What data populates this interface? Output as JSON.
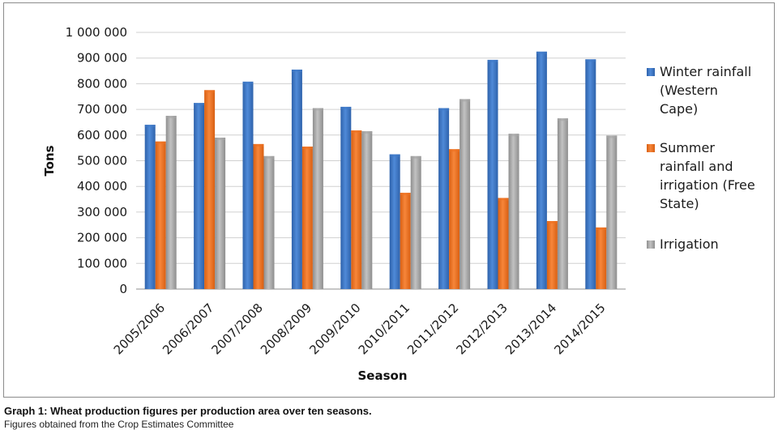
{
  "colors": {
    "series": [
      "#3f79c8",
      "#ee7222",
      "#a5a5a5"
    ]
  },
  "chart_data": {
    "type": "bar",
    "title": "",
    "xlabel": "Season",
    "ylabel": "Tons",
    "ylim": [
      0,
      1000000
    ],
    "yticks": [
      "0",
      "100 000",
      "200 000",
      "300 000",
      "400 000",
      "500 000",
      "600 000",
      "700 000",
      "800 000",
      "900 000",
      "1 000 000"
    ],
    "categories": [
      "2005/2006",
      "2006/2007",
      "2007/2008",
      "2008/2009",
      "2009/2010",
      "2010/2011",
      "2011/2012",
      "2012/2013",
      "2013/2014",
      "2014/2015"
    ],
    "series": [
      {
        "name": "Winter rainfall (Western Cape)",
        "values": [
          640000,
          725000,
          808000,
          855000,
          710000,
          525000,
          705000,
          893000,
          925000,
          895000
        ]
      },
      {
        "name": "Summer rainfall and irrigation (Free State)",
        "values": [
          575000,
          775000,
          565000,
          555000,
          618000,
          375000,
          545000,
          355000,
          265000,
          240000
        ]
      },
      {
        "name": "Irrigation",
        "values": [
          675000,
          590000,
          518000,
          705000,
          615000,
          518000,
          740000,
          605000,
          665000,
          598000
        ]
      }
    ],
    "grid": true,
    "legend": "right"
  },
  "legend": {
    "items": [
      {
        "lines": [
          "Winter rainfall",
          "(Western",
          "Cape)"
        ]
      },
      {
        "lines": [
          "Summer",
          "rainfall and",
          "irrigation (Free",
          "State)"
        ]
      },
      {
        "lines": [
          "Irrigation"
        ]
      }
    ]
  },
  "caption": {
    "title": "Graph 1: Wheat production figures per production area over ten seasons.",
    "source": "Figures obtained from the Crop Estimates Committee"
  }
}
